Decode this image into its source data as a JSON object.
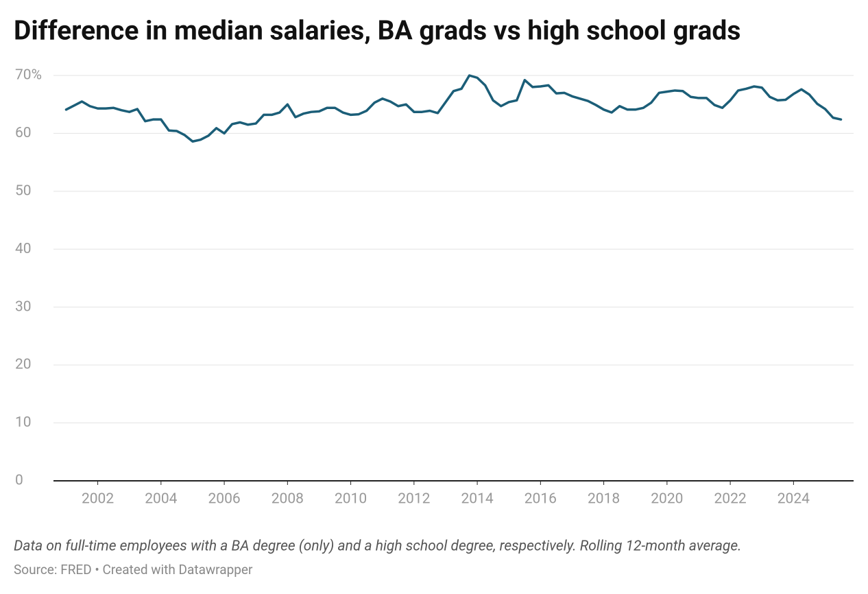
{
  "chart_data": {
    "type": "line",
    "title": "Difference in median salaries, BA grads vs high school grads",
    "note": "Data on full-time employees with a BA degree (only) and a high school degree, respectively. Rolling 12-month average.",
    "source": "Source: FRED • Created with Datawrapper",
    "x": [
      2001,
      2001.25,
      2001.5,
      2001.75,
      2002,
      2002.25,
      2002.5,
      2002.75,
      2003,
      2003.25,
      2003.5,
      2003.75,
      2004,
      2004.25,
      2004.5,
      2004.75,
      2005,
      2005.25,
      2005.5,
      2005.75,
      2006,
      2006.25,
      2006.5,
      2006.75,
      2007,
      2007.25,
      2007.5,
      2007.75,
      2008,
      2008.25,
      2008.5,
      2008.75,
      2009,
      2009.25,
      2009.5,
      2009.75,
      2010,
      2010.25,
      2010.5,
      2010.75,
      2011,
      2011.25,
      2011.5,
      2011.75,
      2012,
      2012.25,
      2012.5,
      2012.75,
      2013,
      2013.25,
      2013.5,
      2013.75,
      2014,
      2014.25,
      2014.5,
      2014.75,
      2015,
      2015.25,
      2015.5,
      2015.75,
      2016,
      2016.25,
      2016.5,
      2016.75,
      2017,
      2017.25,
      2017.5,
      2017.75,
      2018,
      2018.25,
      2018.5,
      2018.75,
      2019,
      2019.25,
      2019.5,
      2019.75,
      2020,
      2020.25,
      2020.5,
      2020.75,
      2021,
      2021.25,
      2021.5,
      2021.75,
      2022,
      2022.25,
      2022.5,
      2022.75,
      2023,
      2023.25,
      2023.5,
      2023.75,
      2024,
      2024.25,
      2024.5,
      2024.75,
      2025,
      2025.25,
      2025.5
    ],
    "series": [
      {
        "color": "#1b5e78",
        "values": [
          64.1,
          64.8,
          65.5,
          64.7,
          64.3,
          64.3,
          64.4,
          64.0,
          63.7,
          64.2,
          62.1,
          62.4,
          62.4,
          60.5,
          60.4,
          59.7,
          58.6,
          58.9,
          59.6,
          60.9,
          60.0,
          61.6,
          61.9,
          61.5,
          61.7,
          63.2,
          63.2,
          63.6,
          65.0,
          62.8,
          63.4,
          63.7,
          63.8,
          64.4,
          64.4,
          63.6,
          63.2,
          63.3,
          63.9,
          65.3,
          66.0,
          65.5,
          64.7,
          65.0,
          63.7,
          63.7,
          63.9,
          63.5,
          65.4,
          67.3,
          67.7,
          70.0,
          69.6,
          68.3,
          65.7,
          64.7,
          65.4,
          65.7,
          69.2,
          68.0,
          68.1,
          68.3,
          66.9,
          67.0,
          66.4,
          66.0,
          65.6,
          64.9,
          64.1,
          63.6,
          64.7,
          64.1,
          64.1,
          64.4,
          65.3,
          67.0,
          67.2,
          67.4,
          67.3,
          66.3,
          66.1,
          66.1,
          64.9,
          64.4,
          65.7,
          67.4,
          67.7,
          68.1,
          67.9,
          66.3,
          65.7,
          65.8,
          66.8,
          67.6,
          66.7,
          65.1,
          64.2,
          62.7,
          62.4
        ]
      }
    ],
    "xlim": [
      2000.6,
      2025.9
    ],
    "xticks": [
      2002,
      2004,
      2006,
      2008,
      2010,
      2012,
      2014,
      2016,
      2018,
      2020,
      2022,
      2024
    ],
    "ylim": [
      0,
      70
    ],
    "yticks": [
      0,
      10,
      20,
      30,
      40,
      50,
      60,
      {
        "value": 70,
        "label": "70%"
      }
    ],
    "grid": true
  }
}
